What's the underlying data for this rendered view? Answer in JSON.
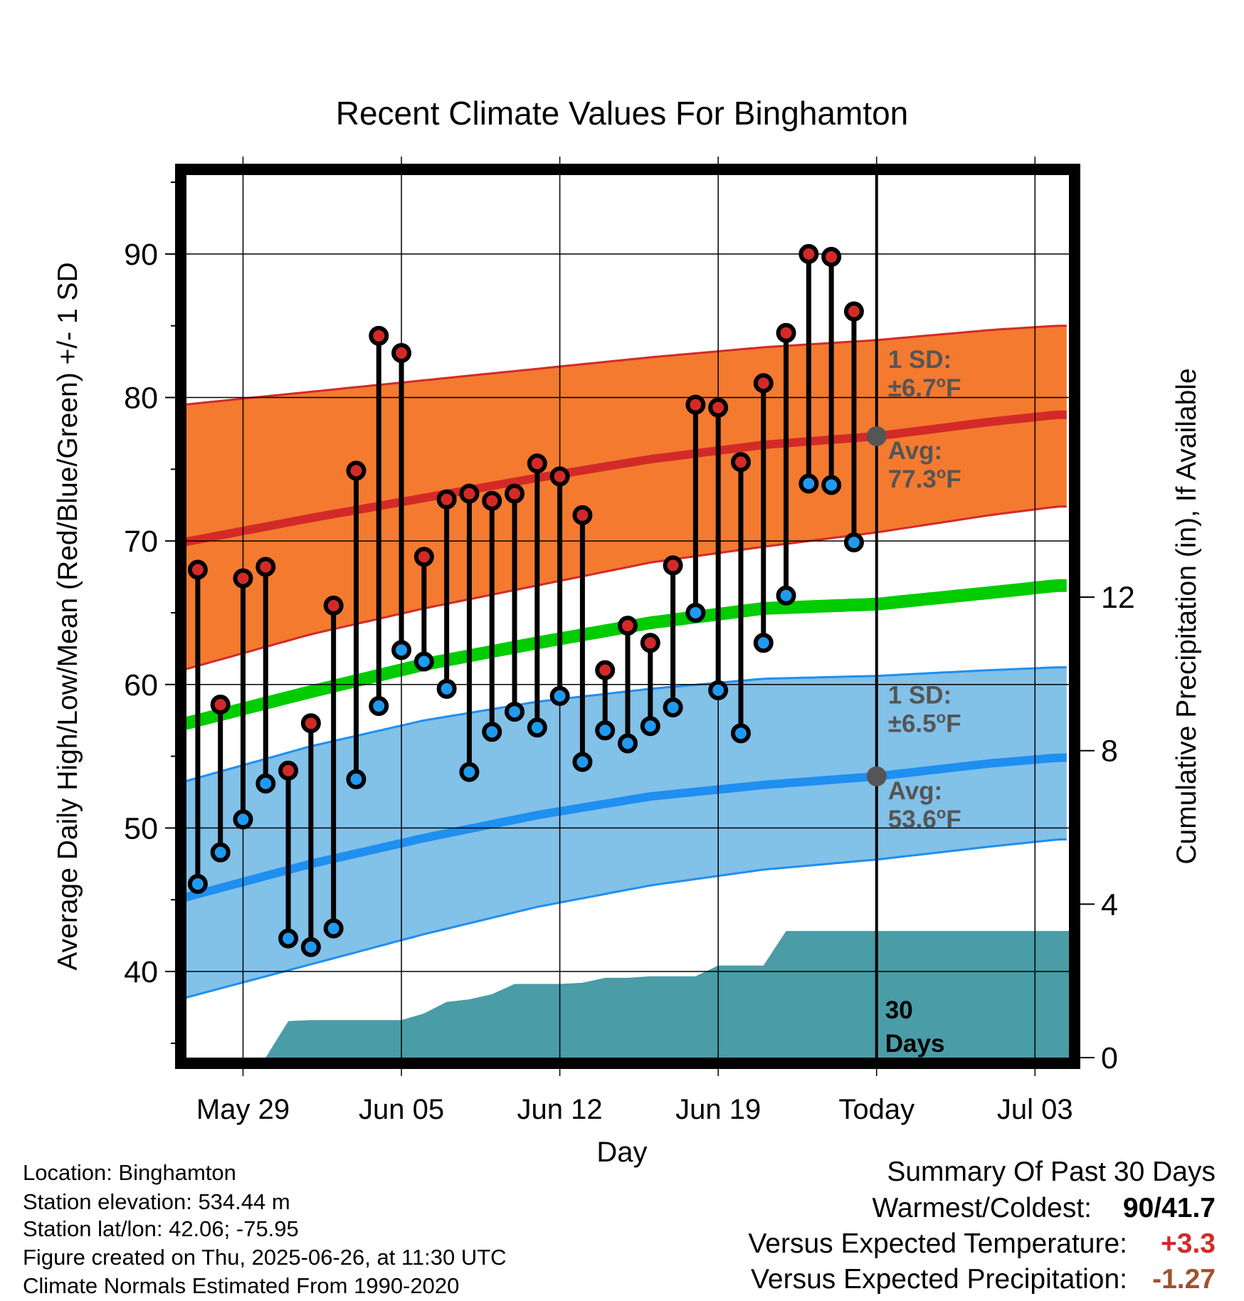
{
  "colors": {
    "high_band": "#F47A30",
    "high_avg_line": "#D32A28",
    "low_band": "#82C1E8",
    "low_avg_line": "#1F8FF0",
    "mean_line": "#00CC00",
    "precip_area": "#4A9CA6",
    "high_marker": "#D32A28",
    "low_marker": "#1F9AF0",
    "annotation_text": "#555555",
    "summary_positive": "#D32A28",
    "summary_negative": "#A0522D"
  },
  "chart_data": {
    "type": "line",
    "title": "Recent Climate Values For Binghamton",
    "xlabel": "Day",
    "ylabel": "Average Daily High/Low/Mean (Red/Blue/Green) +/- 1 SD",
    "y2label": "Cumulative Precipitation (in), If Available",
    "x_tick_labels": [
      "May 29",
      "Jun 05",
      "Jun 12",
      "Jun 19",
      "Today",
      "Jul 03"
    ],
    "x_tick_days": [
      2,
      9,
      16,
      23,
      30,
      37
    ],
    "xlim": [
      -0.5,
      38.5
    ],
    "ylim": [
      34,
      95.5
    ],
    "yticks": [
      40,
      50,
      60,
      70,
      80,
      90
    ],
    "y2lim": [
      0,
      23
    ],
    "y2ticks": [
      0,
      4,
      8,
      12
    ],
    "grid": true,
    "today_day": 30,
    "days_label": "30\nDays",
    "normals": {
      "days": [
        0,
        5,
        10,
        15,
        20,
        25,
        30,
        35,
        38
      ],
      "avg_high": [
        70.1,
        71.6,
        73.0,
        74.4,
        75.7,
        76.7,
        77.3,
        78.3,
        78.8
      ],
      "avg_high_upper": [
        79.6,
        80.4,
        81.2,
        82.0,
        82.8,
        83.5,
        84.0,
        84.7,
        85.0
      ],
      "avg_high_lower": [
        61.3,
        63.5,
        65.3,
        66.9,
        68.5,
        69.6,
        70.6,
        71.8,
        72.4
      ],
      "mean": [
        57.5,
        59.5,
        61.4,
        62.9,
        64.3,
        65.3,
        65.6,
        66.4,
        66.9
      ],
      "avg_low": [
        45.4,
        47.5,
        49.3,
        50.9,
        52.2,
        53.0,
        53.6,
        54.5,
        54.9
      ],
      "avg_low_upper": [
        53.5,
        55.7,
        57.5,
        58.8,
        59.7,
        60.4,
        60.6,
        61.0,
        61.2
      ],
      "avg_low_lower": [
        38.4,
        40.5,
        42.6,
        44.5,
        46.0,
        47.1,
        47.8,
        48.7,
        49.2
      ]
    },
    "series": [
      {
        "name": "High",
        "days": [
          0,
          1,
          2,
          3,
          4,
          5,
          6,
          7,
          8,
          9,
          10,
          11,
          12,
          13,
          14,
          15,
          16,
          17,
          18,
          19,
          20,
          21,
          22,
          23,
          24,
          25,
          26,
          27,
          28,
          29
        ],
        "values": [
          68.0,
          58.6,
          67.4,
          68.2,
          54.0,
          57.3,
          65.5,
          74.9,
          84.3,
          83.1,
          68.9,
          72.9,
          73.3,
          72.8,
          73.3,
          75.4,
          74.5,
          71.8,
          61.0,
          64.1,
          62.9,
          68.3,
          79.5,
          79.3,
          75.5,
          81.0,
          84.5,
          90.0,
          89.8,
          86.0
        ]
      },
      {
        "name": "Low",
        "days": [
          0,
          1,
          2,
          3,
          4,
          5,
          6,
          7,
          8,
          9,
          10,
          11,
          12,
          13,
          14,
          15,
          16,
          17,
          18,
          19,
          20,
          21,
          22,
          23,
          24,
          25,
          26,
          27,
          28,
          29
        ],
        "values": [
          46.1,
          48.3,
          50.6,
          53.1,
          42.3,
          41.7,
          43.0,
          53.4,
          58.5,
          62.4,
          61.6,
          59.7,
          53.9,
          56.7,
          58.1,
          57.0,
          59.2,
          54.6,
          56.8,
          55.9,
          57.1,
          58.4,
          65.0,
          59.6,
          56.6,
          62.9,
          66.2,
          74.0,
          73.9,
          69.9
        ]
      },
      {
        "name": "Cumulative Precipitation",
        "days": [
          0,
          3,
          4,
          5,
          9,
          10,
          11,
          12,
          13,
          14,
          15,
          16,
          17,
          18,
          19,
          20,
          21,
          22,
          23,
          24,
          25,
          26,
          27,
          28,
          29,
          30,
          38
        ],
        "values": [
          0.0,
          0.0,
          0.95,
          0.98,
          0.98,
          1.15,
          1.45,
          1.52,
          1.65,
          1.92,
          1.92,
          1.92,
          1.95,
          2.08,
          2.08,
          2.12,
          2.12,
          2.12,
          2.4,
          2.4,
          2.4,
          3.3,
          3.3,
          3.3,
          3.3,
          3.3,
          3.3
        ]
      }
    ],
    "annotations": {
      "high_sd_line1": "1 SD:",
      "high_sd_line2": "±6.7°F",
      "high_avg_line1": "Avg:",
      "high_avg_line2": "77.3°F",
      "low_sd_line1": "1 SD:",
      "low_sd_line2": "±6.5°F",
      "low_avg_line1": "Avg:",
      "low_avg_line2": "53.6°F"
    }
  },
  "info": {
    "location": "Location: Binghamton",
    "elevation": "Station elevation: 534.44 m",
    "latlon": "Station lat/lon: 42.06; -75.95",
    "created": "Figure created on Thu, 2025-06-26, at 11:30 UTC",
    "normals": "Climate Normals Estimated From 1990-2020"
  },
  "summary": {
    "title": "Summary Of Past 30 Days",
    "warm_cold_label": "Warmest/Coldest:",
    "warm_cold_value": "90/41.7",
    "temp_label": "Versus Expected Temperature:",
    "temp_value": "+3.3",
    "precip_label": "Versus Expected Precipitation:",
    "precip_value": "-1.27"
  }
}
